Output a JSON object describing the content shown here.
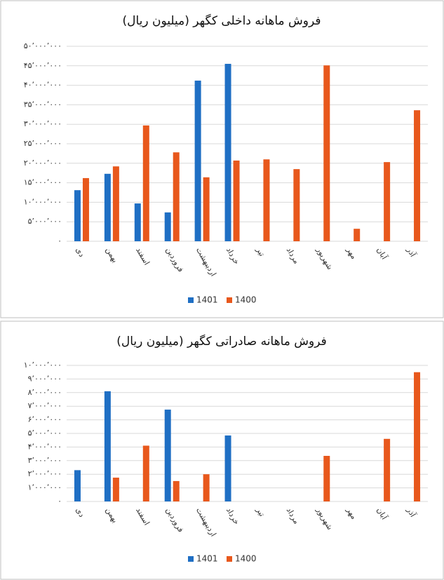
{
  "chart_data": [
    {
      "type": "bar",
      "title": "فروش ماهانه داخلی کگهر (میلیون ریال)",
      "categories": [
        "دی",
        "بهمن",
        "اسفند",
        "فروردین",
        "اردیبهشت",
        "خرداد",
        "تیر",
        "مرداد",
        "شهریور",
        "مهر",
        "آبان",
        "آذر"
      ],
      "series": [
        {
          "name": "1401",
          "color": "#1f6fc4",
          "values": [
            13100000.0,
            17300000.0,
            9700000.0,
            7400000.0,
            41200000.0,
            45500000.0,
            null,
            null,
            null,
            null,
            null,
            null
          ]
        },
        {
          "name": "1400",
          "color": "#e8581c",
          "values": [
            16200000.0,
            19200000.0,
            29700000.0,
            22800000.0,
            16400000.0,
            20700000.0,
            21000000.0,
            18500000.0,
            45100000.0,
            3200000.0,
            20300000.0,
            33600000.0
          ]
        }
      ],
      "ylim": [
        0,
        50000000
      ],
      "yticks": [
        {
          "value": 0,
          "label": "۰"
        },
        {
          "value": 5000000,
          "label": "۵٬۰۰۰٬۰۰۰"
        },
        {
          "value": 10000000,
          "label": "۱۰٬۰۰۰٬۰۰۰"
        },
        {
          "value": 15000000,
          "label": "۱۵٬۰۰۰٬۰۰۰"
        },
        {
          "value": 20000000,
          "label": "۲۰٬۰۰۰٬۰۰۰"
        },
        {
          "value": 25000000,
          "label": "۲۵٬۰۰۰٬۰۰۰"
        },
        {
          "value": 30000000,
          "label": "۳۰٬۰۰۰٬۰۰۰"
        },
        {
          "value": 35000000,
          "label": "۳۵٬۰۰۰٬۰۰۰"
        },
        {
          "value": 40000000,
          "label": "۴۰٬۰۰۰٬۰۰۰"
        },
        {
          "value": 45000000,
          "label": "۴۵٬۰۰۰٬۰۰۰"
        },
        {
          "value": 50000000,
          "label": "۵۰٬۰۰۰٬۰۰۰"
        }
      ],
      "grid": true,
      "legend": "bottom"
    },
    {
      "type": "bar",
      "title": "فروش ماهانه صادراتی کگهر (میلیون ریال)",
      "categories": [
        "دی",
        "بهمن",
        "اسفند",
        "فروردین",
        "اردیبهشت",
        "خرداد",
        "تیر",
        "مرداد",
        "شهریور",
        "مهر",
        "آبان",
        "آذر"
      ],
      "series": [
        {
          "name": "1401",
          "color": "#1f6fc4",
          "values": [
            2300000.0,
            8100000.0,
            null,
            6750000.0,
            null,
            4850000.0,
            null,
            null,
            null,
            null,
            null,
            null
          ]
        },
        {
          "name": "1400",
          "color": "#e8581c",
          "values": [
            null,
            1750000.0,
            4100000.0,
            1500000.0,
            2000000.0,
            null,
            null,
            null,
            3350000.0,
            null,
            4600000.0,
            9500000.0
          ]
        }
      ],
      "ylim": [
        0,
        10000000
      ],
      "yticks": [
        {
          "value": 0,
          "label": "۰"
        },
        {
          "value": 1000000,
          "label": "۱٬۰۰۰٬۰۰۰"
        },
        {
          "value": 2000000,
          "label": "۲٬۰۰۰٬۰۰۰"
        },
        {
          "value": 3000000,
          "label": "۳٬۰۰۰٬۰۰۰"
        },
        {
          "value": 4000000,
          "label": "۴٬۰۰۰٬۰۰۰"
        },
        {
          "value": 5000000,
          "label": "۵٬۰۰۰٬۰۰۰"
        },
        {
          "value": 6000000,
          "label": "۶٬۰۰۰٬۰۰۰"
        },
        {
          "value": 7000000,
          "label": "۷٬۰۰۰٬۰۰۰"
        },
        {
          "value": 8000000,
          "label": "۸٬۰۰۰٬۰۰۰"
        },
        {
          "value": 9000000,
          "label": "۹٬۰۰۰٬۰۰۰"
        },
        {
          "value": 10000000,
          "label": "۱۰٬۰۰۰٬۰۰۰"
        }
      ],
      "grid": true,
      "legend": "bottom"
    }
  ]
}
